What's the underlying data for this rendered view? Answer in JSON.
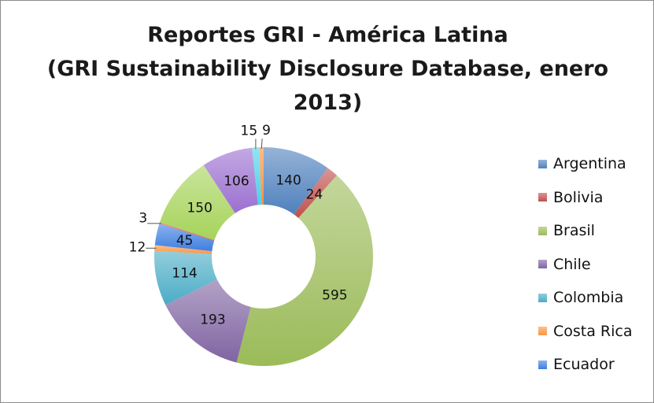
{
  "chart_data": {
    "type": "pie",
    "variant": "donut",
    "title_lines": [
      "Reportes GRI - América Latina",
      "(GRI Sustainability Disclosure Database, enero",
      "2013)"
    ],
    "slices": [
      {
        "value": 140,
        "color": "#4f81bd"
      },
      {
        "value": 24,
        "color": "#c0504d"
      },
      {
        "value": 595,
        "color": "#9bbb59"
      },
      {
        "value": 193,
        "color": "#8064a2"
      },
      {
        "value": 114,
        "color": "#4bacc6"
      },
      {
        "value": 12,
        "color": "#f79646"
      },
      {
        "value": 45,
        "color": "#3f7fe0"
      },
      {
        "value": 3,
        "color": "#d9534f"
      },
      {
        "value": 150,
        "color": "#a6d35a"
      },
      {
        "value": 106,
        "color": "#9b70d0"
      },
      {
        "value": 15,
        "color": "#4fd0e8"
      },
      {
        "value": 9,
        "color": "#f5923e"
      }
    ],
    "legend": [
      {
        "label": "Argentina",
        "color": "#4f81bd"
      },
      {
        "label": "Bolivia",
        "color": "#c0504d"
      },
      {
        "label": "Brasil",
        "color": "#9bbb59"
      },
      {
        "label": "Chile",
        "color": "#8064a2"
      },
      {
        "label": "Colombia",
        "color": "#4bacc6"
      },
      {
        "label": "Costa Rica",
        "color": "#f79646"
      },
      {
        "label": "Ecuador",
        "color": "#3f7fe0"
      }
    ],
    "legend_position": "right"
  }
}
